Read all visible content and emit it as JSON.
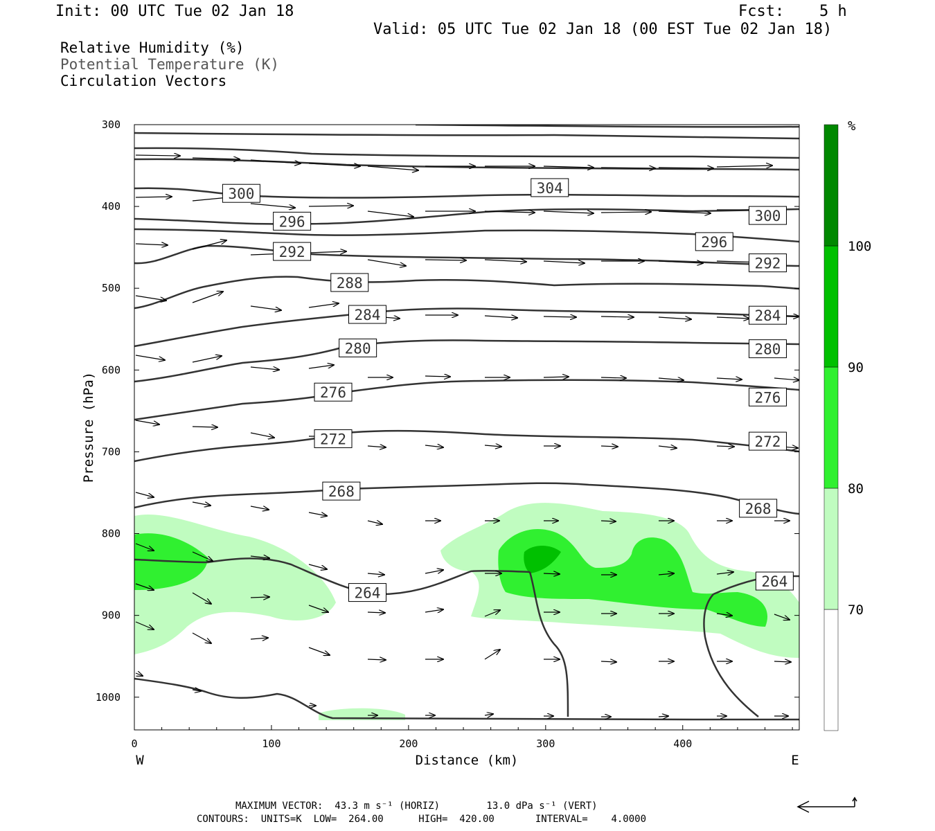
{
  "header": {
    "init": "Init: 00 UTC Tue 02 Jan 18",
    "fcst_label": "Fcst:",
    "fcst_value": "5 h",
    "valid": "Valid: 05 UTC Tue 02 Jan 18 (00 EST Tue 02 Jan 18)"
  },
  "legend": {
    "line1": "Relative Humidity (%)",
    "line2": "Potential Temperature (K)",
    "line3": "Circulation Vectors"
  },
  "footer": {
    "line1": "MAXIMUM VECTOR:  43.3 m s⁻¹ (HORIZ)        13.0 dPa s⁻¹ (VERT)",
    "line2": "CONTOURS:  UNITS=K  LOW=  264.00      HIGH=  420.00       INTERVAL=    4.0000"
  },
  "chart_data": {
    "type": "cross-section",
    "xlabel": "Distance (km)",
    "ylabel": "Pressure (hPa)",
    "x_end_labels": [
      "W",
      "E"
    ],
    "x_ticks": [
      0,
      100,
      200,
      300,
      400
    ],
    "y_ticks": [
      300,
      400,
      500,
      600,
      700,
      800,
      900,
      1000
    ],
    "xlim": [
      0,
      485
    ],
    "ylim": [
      1040,
      300
    ],
    "colorbar": {
      "unit": "%",
      "levels": [
        70,
        80,
        90,
        100
      ],
      "colors": [
        "#ffffff",
        "#c0fcc0",
        "#30f030",
        "#00c000",
        "#008800"
      ]
    },
    "theta_labels": [
      {
        "value": "300",
        "x": 78,
        "p": 384
      },
      {
        "value": "304",
        "x": 303,
        "p": 377
      },
      {
        "value": "296",
        "x": 115,
        "p": 418
      },
      {
        "value": "300",
        "x": 462,
        "p": 411
      },
      {
        "value": "296",
        "x": 423,
        "p": 443
      },
      {
        "value": "292",
        "x": 115,
        "p": 455
      },
      {
        "value": "292",
        "x": 462,
        "p": 469
      },
      {
        "value": "288",
        "x": 157,
        "p": 493
      },
      {
        "value": "284",
        "x": 170,
        "p": 532
      },
      {
        "value": "284",
        "x": 462,
        "p": 533
      },
      {
        "value": "280",
        "x": 163,
        "p": 573
      },
      {
        "value": "280",
        "x": 462,
        "p": 574
      },
      {
        "value": "276",
        "x": 145,
        "p": 627
      },
      {
        "value": "276",
        "x": 462,
        "p": 633
      },
      {
        "value": "272",
        "x": 145,
        "p": 684
      },
      {
        "value": "272",
        "x": 462,
        "p": 687
      },
      {
        "value": "268",
        "x": 151,
        "p": 748
      },
      {
        "value": "268",
        "x": 455,
        "p": 769
      },
      {
        "value": "264",
        "x": 170,
        "p": 872
      },
      {
        "value": "264",
        "x": 467,
        "p": 858
      }
    ]
  }
}
